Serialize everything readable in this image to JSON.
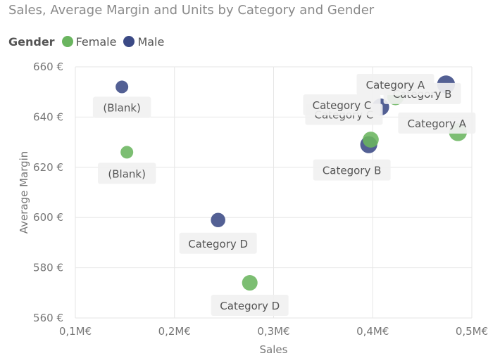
{
  "chart_data": {
    "type": "scatter",
    "title": "Sales, Average Margin and Units by Category and Gender",
    "xlabel": "Sales",
    "ylabel": "Average Margin",
    "xlim": [
      0.1,
      0.5
    ],
    "ylim": [
      560,
      660
    ],
    "x_ticks": [
      "0,1M€",
      "0,2M€",
      "0,3M€",
      "0,4M€",
      "0,5M€"
    ],
    "y_ticks": [
      "560 €",
      "580 €",
      "600 €",
      "620 €",
      "640 €",
      "660 €"
    ],
    "grid": true,
    "legend": {
      "title": "Gender",
      "placement": "top-left"
    },
    "series": [
      {
        "name": "Female",
        "color": "#6ab55f",
        "points": [
          {
            "label": "(Blank)",
            "x": 0.152,
            "y": 626,
            "size": 1.0
          },
          {
            "label": "Category D",
            "x": 0.276,
            "y": 574,
            "size": 1.5
          },
          {
            "label": "Category C",
            "x": 0.398,
            "y": 631,
            "size": 1.6
          },
          {
            "label": "Category A",
            "x": 0.486,
            "y": 634,
            "size": 2.0
          },
          {
            "label": "Category B",
            "x": 0.423,
            "y": 648,
            "size": 1.7
          }
        ]
      },
      {
        "name": "Male",
        "color": "#3b4a85",
        "points": [
          {
            "label": "(Blank)",
            "x": 0.147,
            "y": 652,
            "size": 1.0
          },
          {
            "label": "Category D",
            "x": 0.244,
            "y": 599,
            "size": 1.3
          },
          {
            "label": "Category C",
            "x": 0.408,
            "y": 644,
            "size": 1.8
          },
          {
            "label": "Category B",
            "x": 0.396,
            "y": 629,
            "size": 1.8
          },
          {
            "label": "Category A",
            "x": 0.474,
            "y": 653,
            "size": 2.0
          }
        ]
      }
    ]
  }
}
